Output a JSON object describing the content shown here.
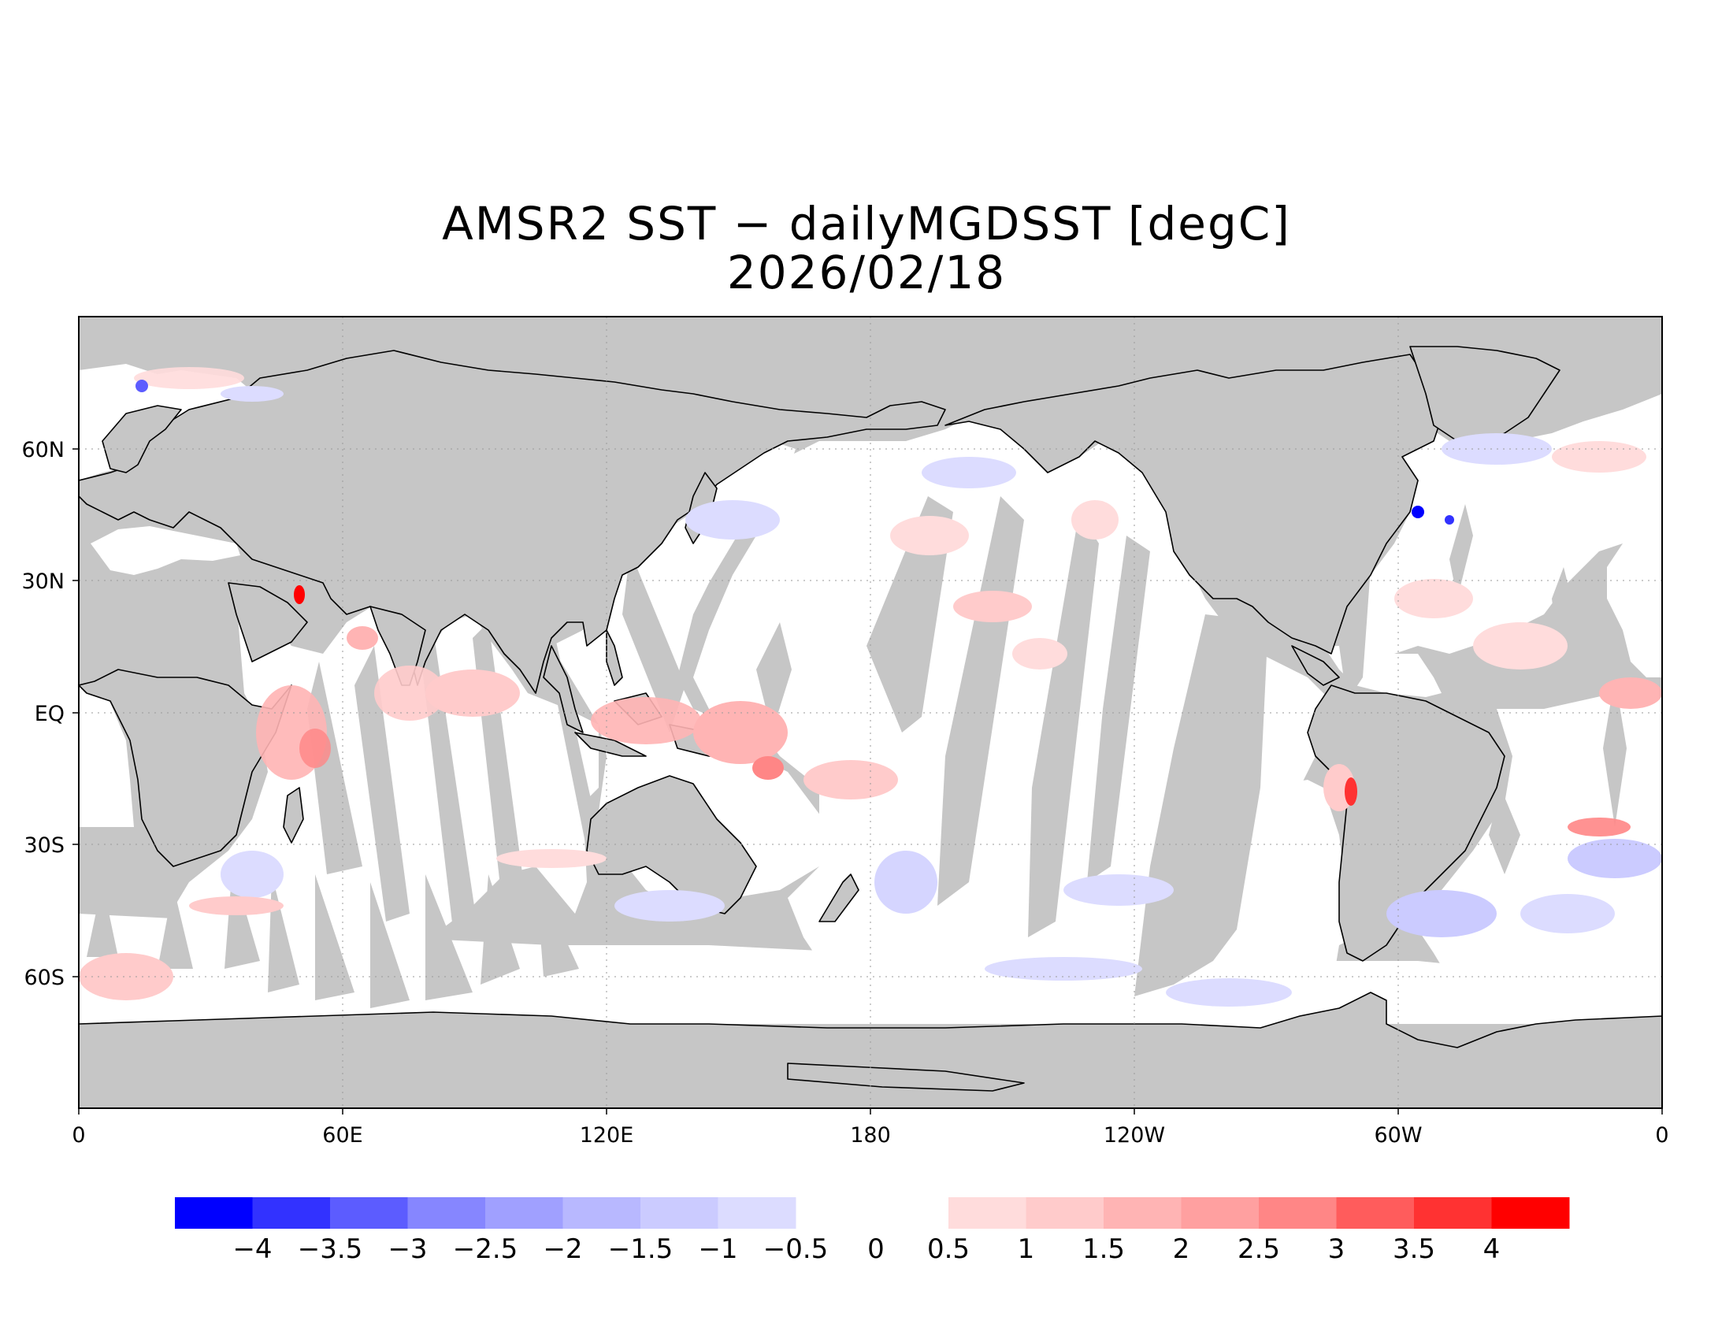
{
  "title": {
    "line1": "AMSR2 SST − dailyMGDSST [degC]",
    "line2": "2026/02/18"
  },
  "axes": {
    "x_ticks": [
      "0",
      "60E",
      "120E",
      "180",
      "120W",
      "60W",
      "0"
    ],
    "y_ticks": [
      "60N",
      "30N",
      "EQ",
      "30S",
      "60S"
    ]
  },
  "colors": {
    "land": "#c6c6c6",
    "ocean": "#ffffff",
    "frame": "#000000"
  },
  "colorbar": {
    "negative": [
      {
        "color": "#0000ff"
      },
      {
        "color": "#3232ff"
      },
      {
        "color": "#5c5cff"
      },
      {
        "color": "#8686ff"
      },
      {
        "color": "#a0a0ff"
      },
      {
        "color": "#b8b8ff"
      },
      {
        "color": "#cbcbff"
      },
      {
        "color": "#dcdcff"
      }
    ],
    "positive": [
      {
        "color": "#ffdcdc"
      },
      {
        "color": "#ffcbcb"
      },
      {
        "color": "#ffb4b4"
      },
      {
        "color": "#ffa0a0"
      },
      {
        "color": "#ff8686"
      },
      {
        "color": "#ff5c5c"
      },
      {
        "color": "#ff3232"
      },
      {
        "color": "#ff0000"
      }
    ],
    "labels": [
      "−4",
      "−3.5",
      "−3",
      "−2.5",
      "−2",
      "−1.5",
      "−1",
      "−0.5",
      "0",
      "0.5",
      "1",
      "1.5",
      "2",
      "2.5",
      "3",
      "3.5",
      "4"
    ]
  }
}
